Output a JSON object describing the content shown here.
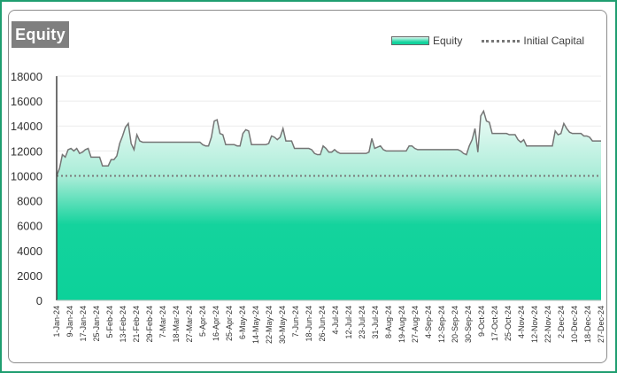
{
  "legend": {
    "equity": "Equity",
    "initial": "Initial Capital"
  },
  "colors": {
    "fill_top": "#f0fcf8",
    "fill_bottom": "#0cd29a",
    "line": "#757575",
    "initial": "#7a7a7a",
    "badge": "#7f7f7f"
  },
  "chart_data": {
    "type": "area",
    "title": "Equity",
    "ylim": [
      0,
      18000
    ],
    "yticks": [
      "0",
      "2000",
      "4000",
      "6000",
      "8000",
      "10000",
      "12000",
      "14000",
      "16000",
      "18000"
    ],
    "x_tick_labels": [
      "1-Jan-24",
      "9-Jan-24",
      "17-Jan-24",
      "25-Jan-24",
      "5-Feb-24",
      "13-Feb-24",
      "21-Feb-24",
      "29-Feb-24",
      "7-Mar-24",
      "18-Mar-24",
      "27-Mar-24",
      "5-Apr-24",
      "16-Apr-24",
      "25-Apr-24",
      "6-May-24",
      "14-May-24",
      "22-May-24",
      "30-May-24",
      "7-Jun-24",
      "18-Jun-24",
      "26-Jun-24",
      "4-Jul-24",
      "12-Jul-24",
      "23-Jul-24",
      "31-Jul-24",
      "8-Aug-24",
      "19-Aug-24",
      "27-Aug-24",
      "4-Sep-24",
      "12-Sep-24",
      "20-Sep-24",
      "30-Sep-24",
      "9-Oct-24",
      "17-Oct-24",
      "25-Oct-24",
      "4-Nov-24",
      "12-Nov-24",
      "22-Nov-24",
      "2-Dec-24",
      "10-Dec-24",
      "18-Dec-24",
      "27-Dec-24"
    ],
    "grid": true,
    "legend_position": "top-right",
    "series": [
      {
        "name": "Equity",
        "values": [
          10000,
          10600,
          11700,
          11500,
          12100,
          12200,
          12000,
          12200,
          11800,
          11900,
          12100,
          12200,
          11500,
          11500,
          11500,
          11500,
          10800,
          10800,
          10800,
          11300,
          11300,
          11600,
          12600,
          13200,
          13900,
          14200,
          12600,
          12100,
          13300,
          12800,
          12700,
          12700,
          12700,
          12700,
          12700,
          12700,
          12700,
          12700,
          12700,
          12700,
          12700,
          12700,
          12700,
          12700,
          12700,
          12700,
          12700,
          12700,
          12700,
          12700,
          12700,
          12500,
          12400,
          12400,
          13100,
          14400,
          14500,
          13400,
          13300,
          12500,
          12500,
          12500,
          12500,
          12400,
          12400,
          13400,
          13700,
          13600,
          12500,
          12500,
          12500,
          12500,
          12500,
          12500,
          12600,
          13200,
          13100,
          12900,
          13100,
          13800,
          12800,
          12800,
          12800,
          12200,
          12200,
          12200,
          12200,
          12200,
          12200,
          12100,
          11800,
          11700,
          11700,
          12400,
          12200,
          11900,
          11900,
          12100,
          11900,
          11800,
          11800,
          11800,
          11800,
          11800,
          11800,
          11800,
          11800,
          11800,
          11800,
          11900,
          13000,
          12200,
          12300,
          12400,
          12100,
          12000,
          12000,
          12000,
          12000,
          12000,
          12000,
          12000,
          12000,
          12400,
          12400,
          12200,
          12100,
          12100,
          12100,
          12100,
          12100,
          12100,
          12100,
          12100,
          12100,
          12100,
          12100,
          12100,
          12100,
          12100,
          12100,
          12000,
          11800,
          11700,
          12400,
          12900,
          13800,
          11900,
          14800,
          15200,
          14400,
          14300,
          13400,
          13400,
          13400,
          13400,
          13400,
          13400,
          13300,
          13300,
          13300,
          12900,
          12700,
          12900,
          12400,
          12400,
          12400,
          12400,
          12400,
          12400,
          12400,
          12400,
          12400,
          12400,
          13600,
          13300,
          13400,
          14200,
          13800,
          13500,
          13400,
          13400,
          13400,
          13400,
          13200,
          13200,
          13100,
          12800,
          12800,
          12800,
          12800
        ]
      },
      {
        "name": "Initial Capital",
        "value": 10000
      }
    ]
  }
}
